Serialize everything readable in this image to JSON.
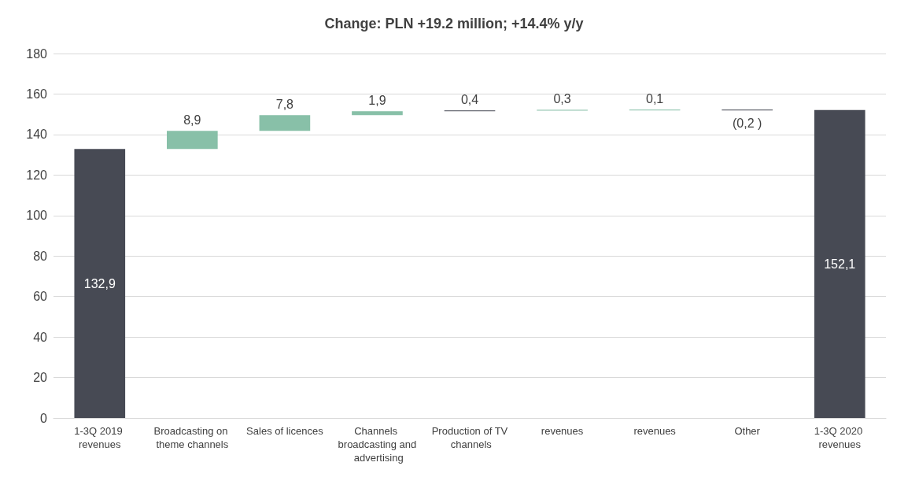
{
  "chart_data": {
    "type": "bar",
    "title": "Change: PLN +19.2 million; +14.4% y/y",
    "categories": [
      "1-3Q 2019 revenues",
      "Broadcasting on theme channels",
      "Sales of licences",
      "Channels broadcasting and advertising",
      "Production of TV channels",
      "revenues",
      "revenues",
      "Other",
      "1-3Q 2020 revenues"
    ],
    "values": [
      132.9,
      8.9,
      7.8,
      1.9,
      0.4,
      0.3,
      0.1,
      -0.2,
      152.1
    ],
    "base": [
      0,
      132.9,
      141.8,
      149.6,
      151.5,
      151.9,
      152.2,
      152.3,
      0
    ],
    "colors": [
      "#474a54",
      "#88c0a8",
      "#88c0a8",
      "#88c0a8",
      "#474a54",
      "#88c0a8",
      "#88c0a8",
      "#474a54",
      "#474a54"
    ],
    "value_labels": [
      "132,9",
      "8,9",
      "7,8",
      "1,9",
      "0,4",
      "0,3",
      "0,1",
      "(0,2 )",
      "152,1"
    ],
    "ylim": [
      0,
      180
    ],
    "yticks": [
      0,
      20,
      40,
      60,
      80,
      100,
      120,
      140,
      160,
      180
    ],
    "grid": "y"
  }
}
